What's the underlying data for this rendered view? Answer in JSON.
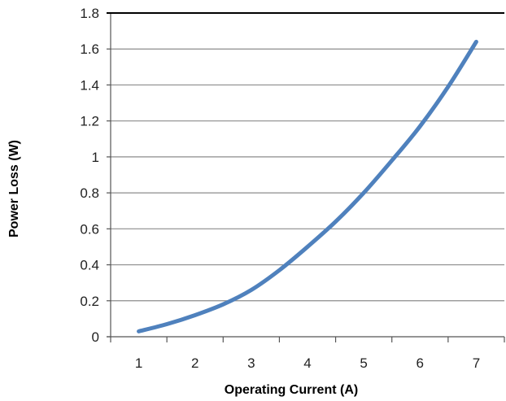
{
  "chart_data": {
    "type": "line",
    "title": "",
    "xlabel": "Operating Current (A)",
    "ylabel": "Power Loss (W)",
    "xlim": [
      0.5,
      7.5
    ],
    "ylim": [
      0,
      1.8
    ],
    "xticks": [
      "1",
      "2",
      "3",
      "4",
      "5",
      "6",
      "7"
    ],
    "yticks": [
      "0",
      "0.2",
      "0.4",
      "0.6",
      "0.8",
      "1",
      "1.2",
      "1.4",
      "1.6",
      "1.8"
    ],
    "grid": "horizontal",
    "legend": "none",
    "series": [
      {
        "color": "#4f81bd",
        "x": [
          1,
          1.5,
          2,
          2.5,
          3,
          3.5,
          4,
          4.5,
          5,
          5.5,
          6,
          6.5,
          7
        ],
        "y": [
          0.03,
          0.07,
          0.12,
          0.18,
          0.26,
          0.37,
          0.5,
          0.64,
          0.8,
          0.98,
          1.17,
          1.39,
          1.64
        ]
      }
    ]
  },
  "colors": {
    "gridline": "#8c8c8c",
    "axis": "#000000",
    "series": "#4f81bd"
  }
}
